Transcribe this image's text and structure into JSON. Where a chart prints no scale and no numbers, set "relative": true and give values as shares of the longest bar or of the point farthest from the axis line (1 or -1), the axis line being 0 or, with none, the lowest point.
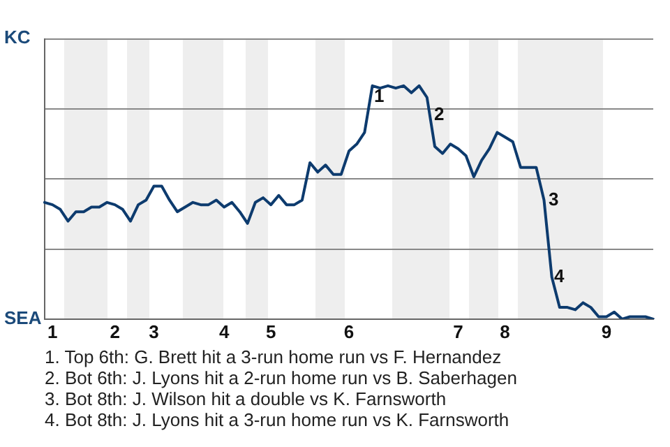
{
  "chart_data": {
    "type": "line",
    "relative": true,
    "categories": [
      null,
      "1",
      null,
      null,
      null,
      null,
      null,
      null,
      null,
      "2",
      null,
      null,
      null,
      null,
      "3",
      null,
      null,
      null,
      null,
      null,
      null,
      null,
      null,
      "4",
      null,
      null,
      null,
      null,
      null,
      "5",
      null,
      null,
      null,
      null,
      null,
      null,
      null,
      null,
      null,
      "6",
      null,
      null,
      null,
      null,
      null,
      null,
      null,
      null,
      null,
      null,
      null,
      null,
      null,
      "7",
      null,
      null,
      null,
      null,
      null,
      "8",
      null,
      null,
      null,
      null,
      null,
      null,
      null,
      null,
      null,
      null,
      null,
      null,
      "9",
      null,
      null,
      null,
      null,
      null,
      null
    ],
    "series": [
      {
        "color": "#0d3b6e",
        "values": [
          0.5,
          0.49,
          0.47,
          0.42,
          0.46,
          0.46,
          0.48,
          0.48,
          0.5,
          0.49,
          0.47,
          0.42,
          0.49,
          0.51,
          0.57,
          0.57,
          0.51,
          0.46,
          0.48,
          0.5,
          0.49,
          0.49,
          0.51,
          0.48,
          0.5,
          0.46,
          0.41,
          0.5,
          0.52,
          0.49,
          0.53,
          0.49,
          0.49,
          0.51,
          0.67,
          0.63,
          0.66,
          0.62,
          0.62,
          0.72,
          0.75,
          0.8,
          1,
          0.99,
          1,
          0.99,
          1,
          0.97,
          1,
          0.95,
          0.74,
          0.71,
          0.75,
          0.73,
          0.7,
          0.61,
          0.68,
          0.73,
          0.8,
          0.78,
          0.76,
          0.65,
          0.65,
          0.65,
          0.51,
          0.18,
          0.05,
          0.05,
          0.04,
          0.07,
          0.05,
          0.01,
          0.01,
          0.03,
          0,
          0.01,
          0.01,
          0.01,
          0
        ]
      }
    ],
    "grid": "y",
    "legend": false,
    "marker": "none",
    "line_style": "solid",
    "annotations": [
      "1",
      "2",
      "3",
      "4",
      "KC",
      "SEA",
      "1. Top 6th: G. Brett hit a 3-run home run vs F. Hernandez",
      "2. Bot 6th: J. Lyons hit a 2-run home run vs B. Saberhagen",
      "3. Bot 8th: J. Wilson hit a double vs K. Farnsworth",
      "4. Bot 8th: J. Lyons hit a 3-run home run vs K. Farnsworth"
    ]
  }
}
